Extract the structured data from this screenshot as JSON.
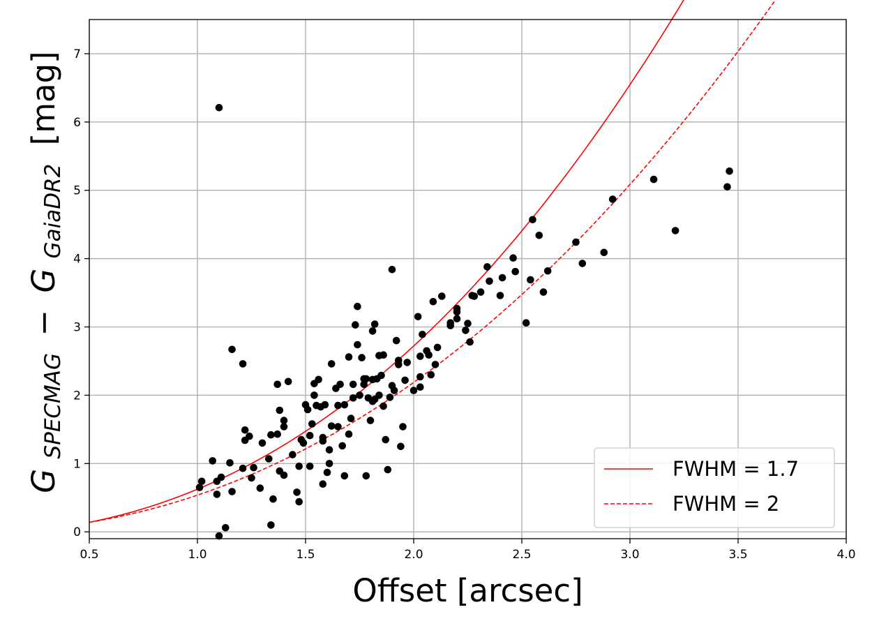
{
  "chart_data": {
    "type": "scatter",
    "xlabel": "Offset [arcsec]",
    "ylabel": {
      "base_1": "G",
      "sub_1": "SPECMAG",
      "minus": "−",
      "base_2": "G",
      "sub_2": "GaiaDR2",
      "unit": "[mag]"
    },
    "xlim": [
      0.5,
      4.0
    ],
    "ylim": [
      -0.1,
      7.5
    ],
    "xticks": [
      "0.5",
      "1.0",
      "1.5",
      "2.0",
      "2.5",
      "3.0",
      "3.5",
      "4.0"
    ],
    "yticks": [
      "0",
      "1",
      "2",
      "3",
      "4",
      "5",
      "6",
      "7"
    ],
    "grid": true,
    "legend_position": "lower-right",
    "series": [
      {
        "kind": "scatter",
        "color": "#000000",
        "points": [
          [
            1.01,
            0.65
          ],
          [
            1.02,
            0.74
          ],
          [
            1.07,
            1.04
          ],
          [
            1.09,
            0.74
          ],
          [
            1.09,
            0.55
          ],
          [
            1.1,
            6.21
          ],
          [
            1.1,
            -0.06
          ],
          [
            1.11,
            0.8
          ],
          [
            1.13,
            0.06
          ],
          [
            1.15,
            1.01
          ],
          [
            1.16,
            0.59
          ],
          [
            1.16,
            2.67
          ],
          [
            1.21,
            2.46
          ],
          [
            1.21,
            0.93
          ],
          [
            1.22,
            1.49
          ],
          [
            1.22,
            1.34
          ],
          [
            1.24,
            1.4
          ],
          [
            1.25,
            0.79
          ],
          [
            1.26,
            0.94
          ],
          [
            1.29,
            0.64
          ],
          [
            1.3,
            1.3
          ],
          [
            1.33,
            1.07
          ],
          [
            1.34,
            1.42
          ],
          [
            1.34,
            0.1
          ],
          [
            1.35,
            0.48
          ],
          [
            1.37,
            2.16
          ],
          [
            1.37,
            1.43
          ],
          [
            1.38,
            0.89
          ],
          [
            1.38,
            1.78
          ],
          [
            1.4,
            1.63
          ],
          [
            1.4,
            1.54
          ],
          [
            1.4,
            0.83
          ],
          [
            1.42,
            2.2
          ],
          [
            1.44,
            1.13
          ],
          [
            1.46,
            0.58
          ],
          [
            1.47,
            0.44
          ],
          [
            1.47,
            0.96
          ],
          [
            1.48,
            1.35
          ],
          [
            1.49,
            1.3
          ],
          [
            1.5,
            1.86
          ],
          [
            1.51,
            1.79
          ],
          [
            1.52,
            0.96
          ],
          [
            1.52,
            1.41
          ],
          [
            1.53,
            1.58
          ],
          [
            1.54,
            2.17
          ],
          [
            1.54,
            2.0
          ],
          [
            1.55,
            1.85
          ],
          [
            1.56,
            2.23
          ],
          [
            1.57,
            1.83
          ],
          [
            1.58,
            1.38
          ],
          [
            1.58,
            1.33
          ],
          [
            1.58,
            0.7
          ],
          [
            1.59,
            1.86
          ],
          [
            1.6,
            0.87
          ],
          [
            1.61,
            1.0
          ],
          [
            1.61,
            1.2
          ],
          [
            1.62,
            1.55
          ],
          [
            1.62,
            2.46
          ],
          [
            1.64,
            2.1
          ],
          [
            1.65,
            1.85
          ],
          [
            1.65,
            1.54
          ],
          [
            1.66,
            2.16
          ],
          [
            1.67,
            1.26
          ],
          [
            1.68,
            1.86
          ],
          [
            1.68,
            0.82
          ],
          [
            1.7,
            1.43
          ],
          [
            1.7,
            2.56
          ],
          [
            1.71,
            1.66
          ],
          [
            1.72,
            2.16
          ],
          [
            1.72,
            1.96
          ],
          [
            1.73,
            3.03
          ],
          [
            1.74,
            3.3
          ],
          [
            1.74,
            2.74
          ],
          [
            1.75,
            2.0
          ],
          [
            1.76,
            2.55
          ],
          [
            1.77,
            2.24
          ],
          [
            1.77,
            2.16
          ],
          [
            1.78,
            2.24
          ],
          [
            1.78,
            0.82
          ],
          [
            1.79,
            1.96
          ],
          [
            1.8,
            1.63
          ],
          [
            1.81,
            2.94
          ],
          [
            1.81,
            2.23
          ],
          [
            1.81,
            1.91
          ],
          [
            1.82,
            3.04
          ],
          [
            1.82,
            1.94
          ],
          [
            1.83,
            2.24
          ],
          [
            1.84,
            2.58
          ],
          [
            1.84,
            2.0
          ],
          [
            1.85,
            2.29
          ],
          [
            1.86,
            1.84
          ],
          [
            1.86,
            2.59
          ],
          [
            1.87,
            1.35
          ],
          [
            1.88,
            0.91
          ],
          [
            1.89,
            1.97
          ],
          [
            1.9,
            2.14
          ],
          [
            1.9,
            3.84
          ],
          [
            1.91,
            2.07
          ],
          [
            1.92,
            2.8
          ],
          [
            1.93,
            2.45
          ],
          [
            1.93,
            2.51
          ],
          [
            1.94,
            1.25
          ],
          [
            1.95,
            1.54
          ],
          [
            1.96,
            2.22
          ],
          [
            1.97,
            2.48
          ],
          [
            2.0,
            2.07
          ],
          [
            2.02,
            3.15
          ],
          [
            2.03,
            2.12
          ],
          [
            2.03,
            2.57
          ],
          [
            2.03,
            2.27
          ],
          [
            2.04,
            2.89
          ],
          [
            2.06,
            2.65
          ],
          [
            2.07,
            2.59
          ],
          [
            2.08,
            2.3
          ],
          [
            2.09,
            3.37
          ],
          [
            2.1,
            2.45
          ],
          [
            2.11,
            2.7
          ],
          [
            2.13,
            3.45
          ],
          [
            2.17,
            3.06
          ],
          [
            2.17,
            3.02
          ],
          [
            2.2,
            3.12
          ],
          [
            2.2,
            3.27
          ],
          [
            2.2,
            3.22
          ],
          [
            2.24,
            2.95
          ],
          [
            2.25,
            3.05
          ],
          [
            2.26,
            2.78
          ],
          [
            2.27,
            3.46
          ],
          [
            2.28,
            3.45
          ],
          [
            2.31,
            3.51
          ],
          [
            2.34,
            3.88
          ],
          [
            2.35,
            3.67
          ],
          [
            2.4,
            3.46
          ],
          [
            2.41,
            3.72
          ],
          [
            2.46,
            4.01
          ],
          [
            2.47,
            3.81
          ],
          [
            2.52,
            3.06
          ],
          [
            2.54,
            3.69
          ],
          [
            2.55,
            4.57
          ],
          [
            2.58,
            4.34
          ],
          [
            2.6,
            3.51
          ],
          [
            2.62,
            3.82
          ],
          [
            2.75,
            4.24
          ],
          [
            2.78,
            3.93
          ],
          [
            2.88,
            4.09
          ],
          [
            2.92,
            4.87
          ],
          [
            3.11,
            5.16
          ],
          [
            3.21,
            4.41
          ],
          [
            3.45,
            5.05
          ],
          [
            3.46,
            5.28
          ]
        ]
      },
      {
        "kind": "line",
        "name": "FWHM = 1.7",
        "color": "#ff0000",
        "dash": "solid",
        "fwhm": 1.7
      },
      {
        "kind": "line",
        "name": "FWHM = 2",
        "color": "#ff0000",
        "dash": "dashed",
        "fwhm": 2
      }
    ]
  }
}
